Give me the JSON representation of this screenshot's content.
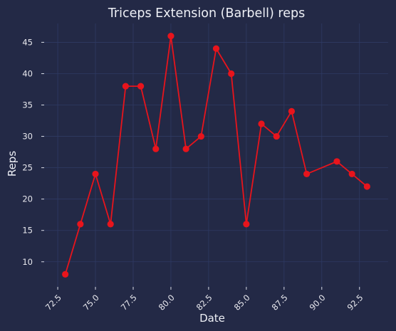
{
  "chart_data": {
    "type": "line",
    "title": "Triceps Extension (Barbell) reps",
    "xlabel": "Date",
    "ylabel": "Reps",
    "x_ticks": [
      "72.5",
      "75.0",
      "77.5",
      "80.0",
      "82.5",
      "85.0",
      "87.5",
      "90.0",
      "92.5"
    ],
    "y_ticks": [
      "10",
      "15",
      "20",
      "25",
      "30",
      "35",
      "40",
      "45"
    ],
    "xlim": [
      71.6,
      94.4
    ],
    "ylim": [
      6.0,
      48.0
    ],
    "grid": true,
    "series": [
      {
        "color": "#e8141c",
        "x": [
          73,
          74,
          75,
          76,
          77,
          78,
          79,
          80,
          81,
          82,
          83,
          84,
          85,
          86,
          87,
          88,
          89,
          91,
          92,
          93
        ],
        "y": [
          8,
          16,
          24,
          16,
          38,
          38,
          28,
          46,
          28,
          30,
          44,
          40,
          16,
          32,
          30,
          34,
          24,
          26,
          24,
          22
        ]
      }
    ]
  },
  "colors": {
    "background": "#232946",
    "grid": "#2f3a63",
    "line": "#e8141c",
    "text": "#eef0f6"
  }
}
